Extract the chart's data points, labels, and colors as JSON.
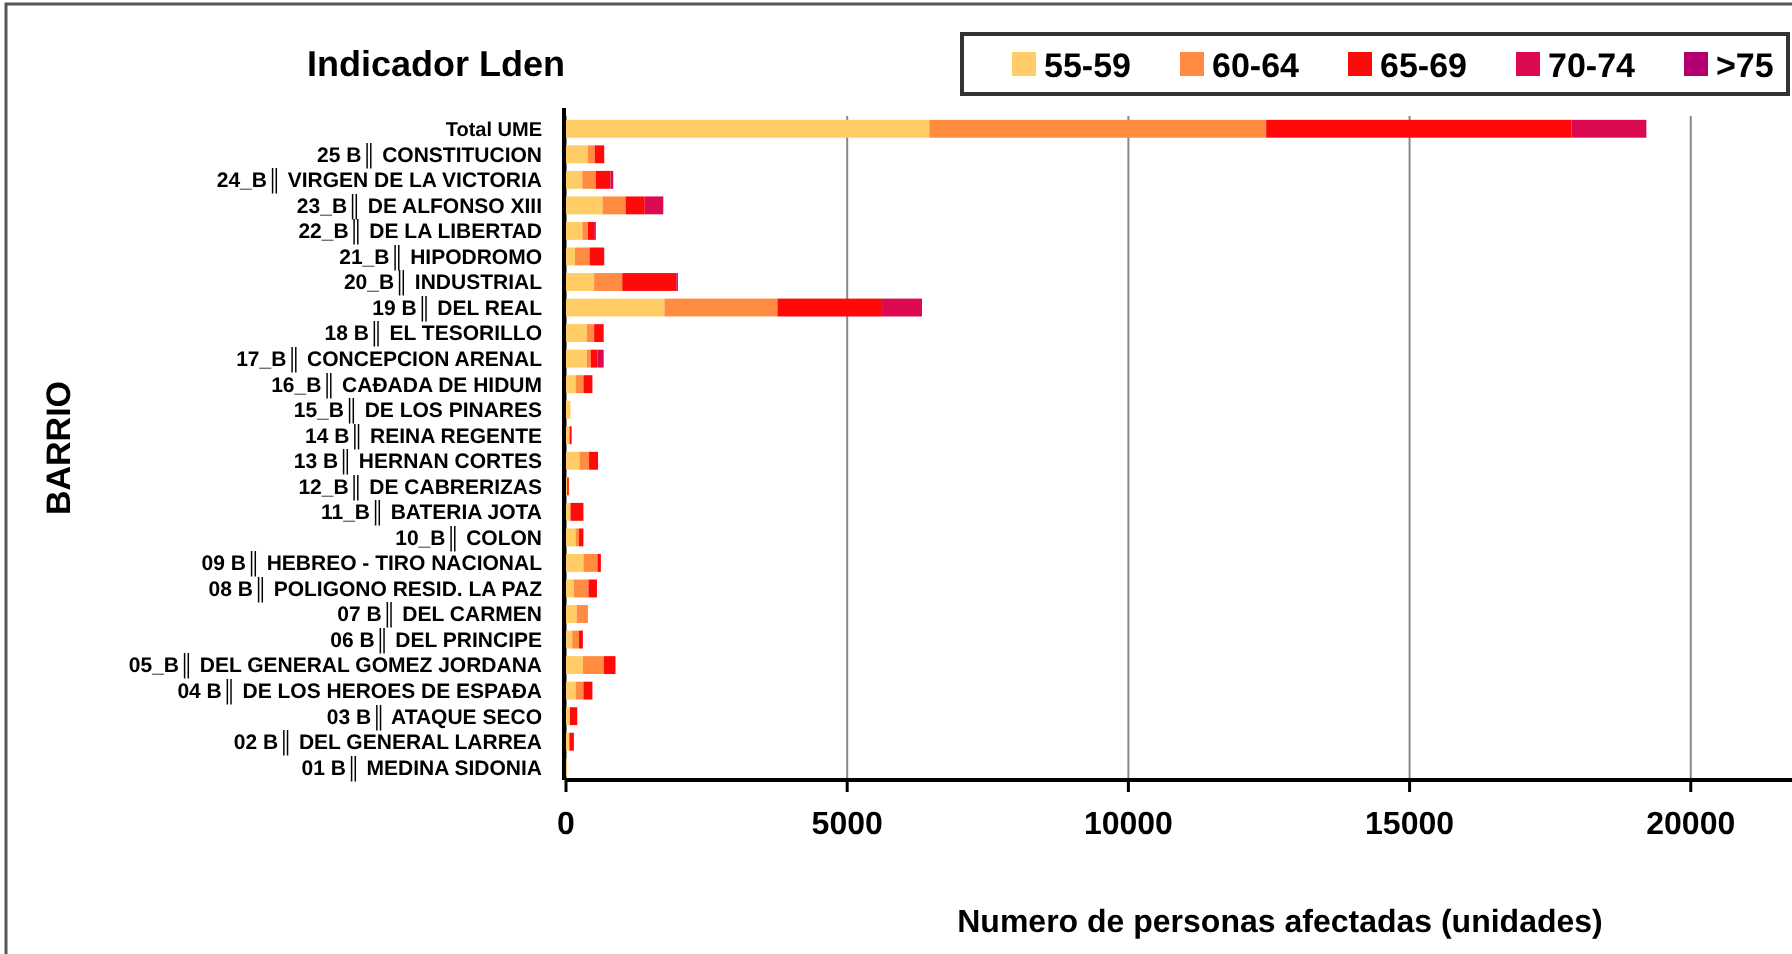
{
  "chart_data": {
    "type": "bar",
    "orientation": "horizontal",
    "stacked": true,
    "title": "Indicador Lden",
    "xlabel": "Numero de personas  afectadas  (unidades)",
    "ylabel": "BARRIO",
    "categories": [
      "Total UME",
      "25  B║ CONSTITUCION",
      "24_B║ VIRGEN DE LA VICTORIA",
      "23_B║ DE ALFONSO XIII",
      "22_B║ DE LA LIBERTAD",
      "21_B║ HIPODROMO",
      "20_B║ INDUSTRIAL",
      "19  B║ DEL REAL",
      "18  B║ EL TESORILLO",
      "17_B║ CONCEPCION ARENAL",
      "16_B║ CAĐADA DE HIDUM",
      "15_B║ DE LOS PINARES",
      "14  B║ REINA REGENTE",
      "13  B║ HERNAN CORTES",
      "12_B║ DE CABRERIZAS",
      "11_B║ BATERIA JOTA",
      "10_B║ COLON",
      "09  B║ HEBREO - TIRO NACIONAL",
      "08  B║ POLIGONO RESID. LA PAZ",
      "07  B║ DEL CARMEN",
      "06  B║ DEL PRINCIPE",
      "05_B║ DEL GENERAL  GOMEZ JORDANA",
      "04  B║ DE LOS HEROES DE ESPAĐA",
      "03  B║ ATAQUE SECO",
      "02  B║ DEL GENERAL LARREA",
      "01  B║ MEDINA SIDONIA"
    ],
    "series": [
      {
        "name": "55-59",
        "color": "#ffcc66",
        "values": [
          6460,
          390,
          290,
          650,
          290,
          160,
          500,
          1750,
          370,
          370,
          170,
          80,
          50,
          240,
          20,
          80,
          170,
          310,
          140,
          190,
          110,
          300,
          170,
          70,
          60,
          20
        ]
      },
      {
        "name": "60-64",
        "color": "#ff8c40",
        "values": [
          5990,
          120,
          240,
          410,
          100,
          260,
          500,
          2010,
          130,
          70,
          140,
          0,
          20,
          170,
          0,
          0,
          60,
          250,
          260,
          200,
          120,
          370,
          140,
          0,
          0,
          0
        ]
      },
      {
        "name": "65-69",
        "color": "#ff0a0a",
        "values": [
          5430,
          170,
          260,
          340,
          110,
          260,
          960,
          1860,
          170,
          120,
          160,
          0,
          30,
          160,
          30,
          230,
          80,
          60,
          150,
          0,
          70,
          210,
          160,
          130,
          80,
          0
        ]
      },
      {
        "name": "70-74",
        "color": "#dc0a50",
        "values": [
          1330,
          0,
          50,
          330,
          30,
          0,
          30,
          710,
          0,
          110,
          0,
          0,
          0,
          0,
          0,
          0,
          0,
          0,
          0,
          0,
          0,
          0,
          0,
          0,
          0,
          0
        ]
      },
      {
        "name": ">75",
        "color": "#b4006e",
        "values": [
          0,
          0,
          0,
          0,
          0,
          0,
          0,
          0,
          0,
          0,
          0,
          0,
          0,
          0,
          0,
          0,
          0,
          0,
          0,
          0,
          0,
          0,
          0,
          0,
          0,
          0
        ]
      }
    ],
    "xlim": [
      0,
      21800
    ],
    "xticks": [
      0,
      5000,
      10000,
      15000,
      20000
    ],
    "grid": "x",
    "legend": "top right"
  }
}
